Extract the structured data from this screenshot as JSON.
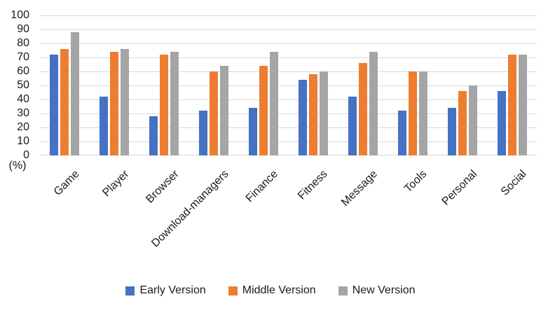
{
  "chart_data": {
    "type": "bar",
    "title": "",
    "xlabel": "",
    "ylabel": "(%)",
    "ylim": [
      0,
      100
    ],
    "ytick_step": 10,
    "yticks": [
      0,
      10,
      20,
      30,
      40,
      50,
      60,
      70,
      80,
      90,
      100
    ],
    "grid": true,
    "legend_position": "bottom",
    "gridline_color": "#d9d9d9",
    "categories": [
      "Game",
      "Player",
      "Browser",
      "Download-managers",
      "Finance",
      "Fitness",
      "Message",
      "Tools",
      "Personal",
      "Social"
    ],
    "series": [
      {
        "name": "Early Version",
        "color": "#4472C4",
        "values": [
          72,
          42,
          28,
          32,
          34,
          54,
          42,
          32,
          34,
          46
        ]
      },
      {
        "name": "Middle Version",
        "color": "#ED7D31",
        "values": [
          76,
          74,
          72,
          60,
          64,
          58,
          66,
          60,
          46,
          72
        ]
      },
      {
        "name": "New Version",
        "color": "#A5A5A5",
        "values": [
          88,
          76,
          74,
          64,
          74,
          60,
          74,
          60,
          50,
          72
        ]
      }
    ]
  }
}
